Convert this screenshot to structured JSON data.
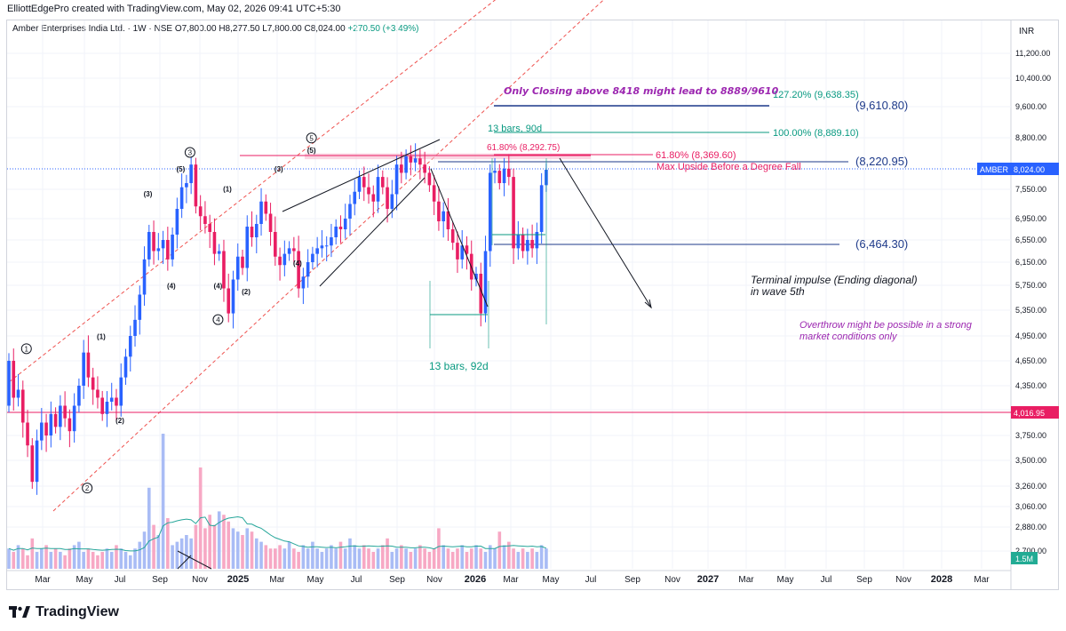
{
  "header": {
    "published_line": "ElliottEdgePro created with TradingView.com, May 02, 2026 09:41 UTC+5:30",
    "symbol_line": "Amber Enterprises India Ltd. · 1W · NSE  O7,800.00  H8,277.50  L7,800.00  C8,024.00",
    "change": "+270.50 (+3.49%)",
    "currency": "INR"
  },
  "branding": {
    "logo_text": "TradingView",
    "logo_icon": "tradingview-logo-icon"
  },
  "colors": {
    "up": "#089981",
    "down": "#f23645",
    "candle_up": "#2962ff",
    "candle_down": "#e91e63",
    "volume_up": "#a9bcf5",
    "volume_down": "#f7a8c4",
    "channel": "#ef5350",
    "accent_purple": "#9c27b0",
    "fib_teal": "#089981",
    "fib_pink": "#e91e63",
    "level_blue": "#1e3a8a"
  },
  "chart_data": {
    "type": "candlestick",
    "title": "Amber Enterprises India Ltd. · 1W · NSE",
    "ylim": [
      2880,
      11600
    ],
    "y_ticks": [
      11200,
      10400,
      9600,
      8800,
      7550,
      6950,
      6550,
      6150,
      5750,
      5350,
      4950,
      4650,
      4350,
      4050,
      3750,
      3500,
      3260,
      3060,
      2880,
      2700
    ],
    "y_tick_labels": [
      "11,200.00",
      "10,400.00",
      "9,600.00",
      "8,800.00",
      "7,550.00",
      "6,950.00",
      "6,550.00",
      "6,150.00",
      "5,750.00",
      "5,350.00",
      "4,950.00",
      "4,650.00",
      "4,350.00",
      "4,050.00",
      "3,750.00",
      "3,500.00",
      "3,260.00",
      "3,060.00",
      "2,880.00",
      "2,700.00"
    ],
    "x_tick_labels": [
      "Mar",
      "May",
      "Jul",
      "Sep",
      "Nov",
      "2025",
      "Mar",
      "May",
      "Jul",
      "Sep",
      "Nov",
      "2026",
      "Mar",
      "May",
      "Jul",
      "Sep",
      "Nov",
      "2027",
      "Mar",
      "May",
      "Jul",
      "Sep",
      "Nov",
      "2028",
      "Mar"
    ],
    "current_price": {
      "label": "AMBER",
      "value": "8,024.00",
      "price": 8024
    },
    "reference_line": {
      "value": "4,016.95",
      "price": 4016.95
    },
    "volume_label": "1.5M",
    "ohlc_path": [
      4100,
      4650,
      4200,
      4300,
      3900,
      3650,
      3300,
      3700,
      3900,
      3750,
      4000,
      3850,
      4100,
      3950,
      3800,
      4100,
      4350,
      4750,
      4450,
      4300,
      4200,
      4000,
      4150,
      4200,
      4100,
      4450,
      4700,
      4950,
      5200,
      5600,
      6200,
      6700,
      6350,
      6400,
      6550,
      6200,
      6650,
      7150,
      7600,
      7700,
      8150,
      7200,
      7000,
      6850,
      6700,
      6300,
      6350,
      5700,
      5300,
      5850,
      6250,
      6050,
      6800,
      6600,
      6850,
      7300,
      7050,
      6700,
      6250,
      6100,
      6300,
      6400,
      6350,
      5700,
      5900,
      6150,
      6300,
      6400,
      6450,
      6450,
      6600,
      6800,
      6750,
      6950,
      7250,
      7500,
      7850,
      7600,
      7450,
      7300,
      7850,
      7600,
      7150,
      7450,
      8150,
      7950,
      8350,
      8200,
      8300,
      8150,
      7950,
      7650,
      7300,
      6900,
      7100,
      6750,
      6500,
      6200,
      6450,
      6300,
      5850,
      5950,
      5300,
      6350,
      7950,
      8000,
      7700,
      8050,
      7850,
      6400,
      6650,
      6350,
      6550,
      6400,
      6700,
      7650,
      8024
    ],
    "volume": [
      0.6,
      0.5,
      0.7,
      0.6,
      0.4,
      0.9,
      0.5,
      0.6,
      0.7,
      0.5,
      0.6,
      0.5,
      0.4,
      0.6,
      0.7,
      0.8,
      0.5,
      0.6,
      0.5,
      0.4,
      0.5,
      0.6,
      0.5,
      0.7,
      0.6,
      0.5,
      0.4,
      0.6,
      0.8,
      1.1,
      2.4,
      1.3,
      1.0,
      4.0,
      1.5,
      0.7,
      0.8,
      0.9,
      1.0,
      0.9,
      1.3,
      3.0,
      1.2,
      1.6,
      1.3,
      1.7,
      1.6,
      1.4,
      1.2,
      1.1,
      1.0,
      1.2,
      1.1,
      0.9,
      0.8,
      0.7,
      0.6,
      0.6,
      0.7,
      0.6,
      0.8,
      0.6,
      0.5,
      0.7,
      0.6,
      0.8,
      0.6,
      0.5,
      0.6,
      0.7,
      0.6,
      0.8,
      0.6,
      0.9,
      0.7,
      0.6,
      0.7,
      0.6,
      0.5,
      0.6,
      0.7,
      0.9,
      0.5,
      0.6,
      0.7,
      0.6,
      0.5,
      0.6,
      0.7,
      0.6,
      0.5,
      0.6,
      1.2,
      0.7,
      0.6,
      0.5,
      0.6,
      0.7,
      0.5,
      0.6,
      0.7,
      0.6,
      0.5,
      0.7,
      0.6,
      1.1,
      0.7,
      0.8,
      0.6,
      0.5,
      0.6,
      0.5,
      0.6,
      0.5,
      0.7,
      0.6,
      0.6
    ],
    "horizontal_levels": [
      {
        "label": "127.20% (9,638.35)",
        "price": 9638.35,
        "color": "#089981",
        "line": "#1e3a8a"
      },
      {
        "label": "(9,610.80)",
        "price": 9610.8,
        "color": "#1e3a8a",
        "line": "#1e3a8a"
      },
      {
        "label": "100.00% (8,889.10)",
        "price": 8889.1,
        "color": "#089981",
        "line": "#089981"
      },
      {
        "label": "61.80% (8,369.60)",
        "price": 8369.6,
        "color": "#e91e63",
        "line": "#e91e63"
      },
      {
        "label": "(8,220.95)",
        "price": 8220.95,
        "color": "#1e3a8a",
        "line": "#1e3a8a"
      },
      {
        "label": "(6,464.30)",
        "price": 6464.3,
        "color": "#1e3a8a",
        "line": "#1e3a8a"
      }
    ],
    "fib_inline_label": "61.80% (8,292.75)",
    "annotations": {
      "only_closing": "Only Closing above 8418 might lead to 8889/9610",
      "bars_top": "13 bars, 90d",
      "bars_bottom": "13 bars, 92d",
      "max_upside": "Max Upside Before a Degree Fall",
      "terminal_1": "Terminal impulse (Ending diagonal)",
      "terminal_2": "in wave 5th",
      "overthrow_1": "Overthrow might be possible in a strong",
      "overthrow_2": "market conditions only"
    },
    "wave_labels": [
      {
        "text": "1",
        "circled": true,
        "bar": 3,
        "price": 4700,
        "pos": "above"
      },
      {
        "text": "2",
        "circled": true,
        "bar": 16,
        "price": 3300,
        "pos": "below"
      },
      {
        "text": "(1)",
        "bar": 19,
        "price": 4850,
        "pos": "above"
      },
      {
        "text": "(2)",
        "bar": 23,
        "price": 4000,
        "pos": "below"
      },
      {
        "text": "(3)",
        "bar": 29,
        "price": 7300,
        "pos": "above"
      },
      {
        "text": "(4)",
        "bar": 34,
        "price": 5850,
        "pos": "below"
      },
      {
        "text": "(5)",
        "bar": 36,
        "price": 7850,
        "pos": "above"
      },
      {
        "text": "3",
        "circled": true,
        "bar": 38,
        "price": 8250,
        "pos": "above"
      },
      {
        "text": "(4)",
        "bar": 44,
        "price": 5850,
        "pos": "below"
      },
      {
        "text": "4",
        "circled": true,
        "bar": 44,
        "price": 5300,
        "pos": "below"
      },
      {
        "text": "(1)",
        "bar": 46,
        "price": 7400,
        "pos": "above"
      },
      {
        "text": "(2)",
        "bar": 50,
        "price": 5750,
        "pos": "below"
      },
      {
        "text": "(3)",
        "bar": 57,
        "price": 7850,
        "pos": "above"
      },
      {
        "text": "(4)",
        "bar": 61,
        "price": 6250,
        "pos": "below"
      },
      {
        "text": "(5)",
        "bar": 64,
        "price": 8300,
        "pos": "above"
      },
      {
        "text": "5",
        "circled": true,
        "bar": 64,
        "price": 8600,
        "pos": "above"
      }
    ]
  }
}
